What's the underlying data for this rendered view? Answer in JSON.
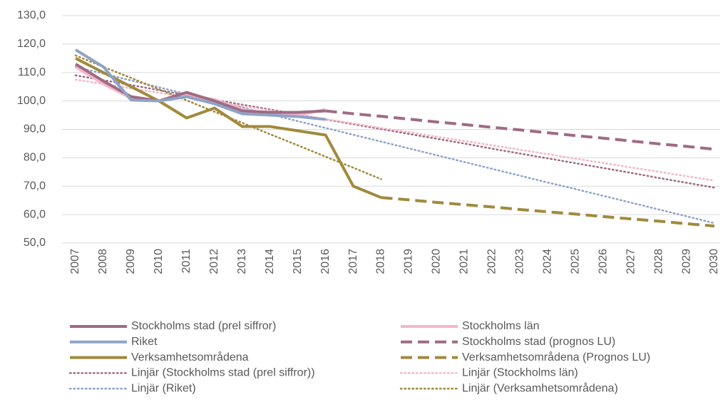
{
  "chart_data": {
    "type": "line",
    "categories": [
      "2007",
      "2008",
      "2009",
      "2010",
      "2011",
      "2012",
      "2013",
      "2014",
      "2015",
      "2016",
      "2017",
      "2018",
      "2019",
      "2020",
      "2021",
      "2022",
      "2023",
      "2024",
      "2025",
      "2026",
      "2027",
      "2028",
      "2029",
      "2030"
    ],
    "ylim": [
      50,
      130
    ],
    "yticks": [
      {
        "value": 50,
        "label": "50,0"
      },
      {
        "value": 60,
        "label": "60,0"
      },
      {
        "value": 70,
        "label": "70,0"
      },
      {
        "value": 80,
        "label": "80,0"
      },
      {
        "value": 90,
        "label": "90,0"
      },
      {
        "value": 100,
        "label": "100,0"
      },
      {
        "value": 110,
        "label": "110,0"
      },
      {
        "value": 120,
        "label": "120,0"
      },
      {
        "value": 130,
        "label": "130,0"
      }
    ],
    "grid": true,
    "series": [
      {
        "name": "Linjär (Stockholms stad (prel siffror))",
        "color": "#9e6b85",
        "style": "dotted",
        "values": [
          109,
          107.3,
          105.6,
          103.8,
          102.1,
          100.4,
          98.7,
          97.0,
          95.3,
          93.5,
          91.8,
          90.1,
          88.4,
          86.7,
          85.0,
          83.2,
          81.5,
          79.8,
          78.1,
          76.4,
          74.7,
          72.9,
          71.2,
          69.5
        ]
      },
      {
        "name": "Linjär (Stockholms län)",
        "color": "#f4b6c8",
        "style": "dotted",
        "values": [
          107.5,
          106.0,
          104.4,
          102.9,
          101.3,
          99.8,
          98.2,
          96.7,
          95.2,
          93.6,
          92.1,
          90.5,
          89.0,
          87.4,
          85.9,
          84.4,
          82.8,
          81.3,
          79.7,
          78.2,
          76.6,
          75.1,
          73.5,
          72.0
        ]
      },
      {
        "name": "Linjär (Riket)",
        "color": "#8fa3c8",
        "style": "dotted",
        "values": [
          112,
          109.6,
          107.2,
          104.8,
          102.4,
          100.0,
          97.7,
          95.3,
          92.9,
          90.5,
          88.1,
          85.7,
          83.3,
          80.9,
          78.5,
          76.1,
          73.7,
          71.3,
          69.0,
          66.6,
          64.2,
          61.8,
          59.4,
          57.0
        ]
      },
      {
        "name": "Linjär (Verksamhetsområdena)",
        "color": "#a08a3c",
        "style": "dotted",
        "values": [
          116,
          112.0,
          108.1,
          104.1,
          100.2,
          96.2,
          92.3,
          88.3,
          84.4,
          80.4,
          76.5,
          72.5,
          null,
          null,
          null,
          null,
          null,
          null,
          null,
          null,
          null,
          null,
          null,
          null
        ]
      },
      {
        "name": "Stockholms stad (prognos LU)",
        "color": "#9e6b85",
        "style": "dashed",
        "values": [
          null,
          null,
          null,
          null,
          null,
          null,
          null,
          null,
          null,
          96.5,
          95.5,
          94.6,
          93.6,
          92.6,
          91.7,
          90.7,
          89.8,
          88.8,
          87.8,
          86.9,
          85.9,
          84.9,
          84.0,
          83.0
        ]
      },
      {
        "name": "Verksamhetsområdena (Prognos LU)",
        "color": "#a08a3c",
        "style": "dashed",
        "values": [
          null,
          null,
          null,
          null,
          null,
          null,
          null,
          null,
          null,
          null,
          null,
          66,
          65.2,
          64.3,
          63.5,
          62.7,
          61.8,
          61,
          60.2,
          59.3,
          58.5,
          57.7,
          56.8,
          56
        ]
      },
      {
        "name": "Verksamhetsområdena",
        "color": "#a08a3c",
        "style": "solid",
        "values": [
          115,
          110,
          105,
          100,
          94,
          97.5,
          91,
          91,
          89.5,
          88,
          70,
          66,
          null,
          null,
          null,
          null,
          null,
          null,
          null,
          null,
          null,
          null,
          null,
          null
        ]
      },
      {
        "name": "Stockholms län",
        "color": "#f4b6c8",
        "style": "solid",
        "values": [
          112,
          106,
          101,
          100,
          102,
          100.5,
          97,
          95.5,
          95,
          97,
          null,
          null,
          null,
          null,
          null,
          null,
          null,
          null,
          null,
          null,
          null,
          null,
          null,
          null
        ]
      },
      {
        "name": "Stockholms stad (prel siffror)",
        "color": "#9e6b85",
        "style": "solid",
        "values": [
          113,
          107,
          101.5,
          100,
          103,
          100,
          96.5,
          96,
          96,
          96.5,
          null,
          null,
          null,
          null,
          null,
          null,
          null,
          null,
          null,
          null,
          null,
          null,
          null,
          null
        ]
      },
      {
        "name": "Riket",
        "color": "#8fa3c8",
        "style": "solid",
        "values": [
          118,
          112,
          100.3,
          100,
          101.5,
          99,
          95.5,
          95,
          94.5,
          93.5,
          null,
          null,
          null,
          null,
          null,
          null,
          null,
          null,
          null,
          null,
          null,
          null,
          null,
          null
        ]
      }
    ],
    "legend_order": [
      8,
      7,
      9,
      4,
      6,
      5,
      0,
      1,
      2,
      3
    ]
  }
}
